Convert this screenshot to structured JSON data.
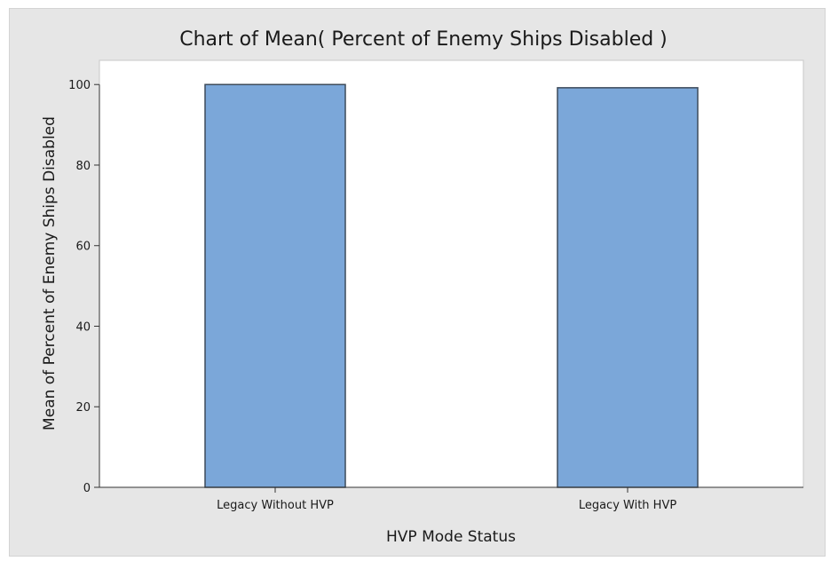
{
  "chart_data": {
    "type": "bar",
    "title": "Chart of Mean( Percent of Enemy Ships Disabled )",
    "xlabel": "HVP Mode Status",
    "ylabel": "Mean of Percent of Enemy Ships Disabled",
    "categories": [
      "Legacy Without HVP",
      "Legacy With HVP"
    ],
    "values": [
      100,
      99.2
    ],
    "ylim": [
      0,
      106
    ],
    "yticks": [
      0,
      20,
      40,
      60,
      80,
      100
    ],
    "grid": false,
    "legend": "none",
    "bar_color": "#7ba7d9",
    "bar_edge_color": "#3c4a5a",
    "plot_background": "#ffffff",
    "figure_background": "#e6e6e6"
  }
}
